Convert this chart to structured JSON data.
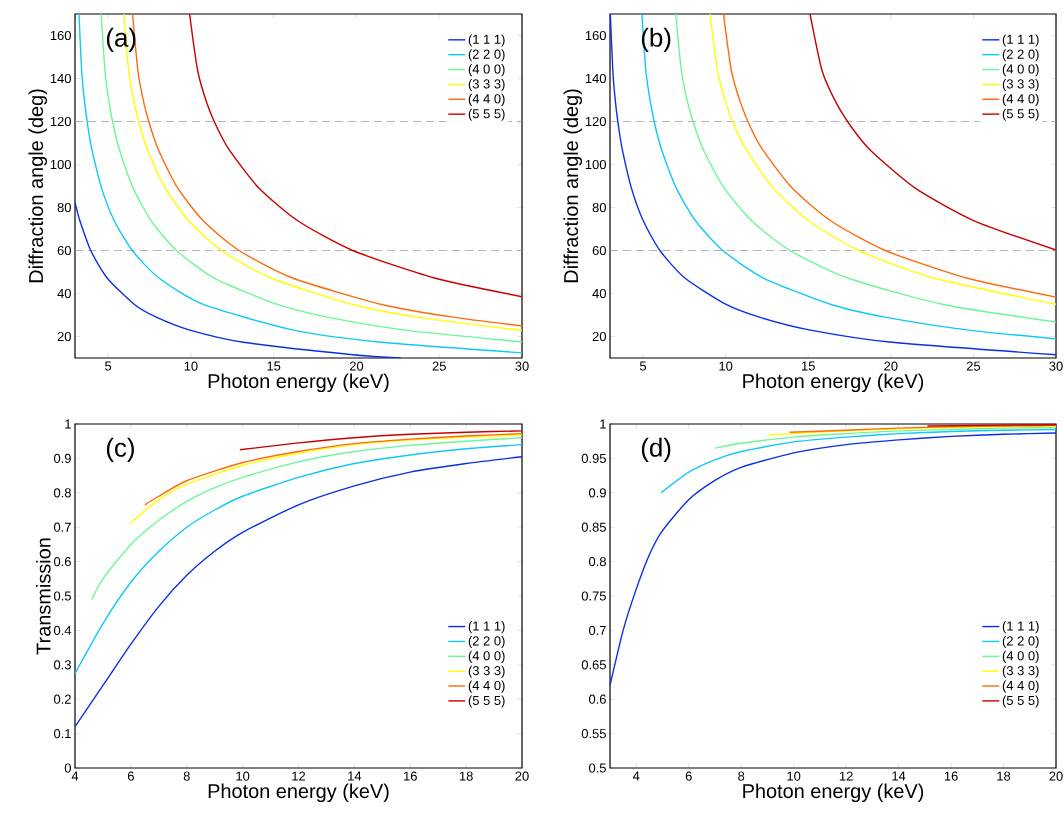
{
  "chart_data": [
    {
      "type": "line",
      "xlabel": "Photon energy (keV)",
      "ylabel": "Diffraction angle (deg)",
      "annotations": [
        "(a)"
      ],
      "xlim": [
        3,
        30
      ],
      "ylim": [
        10,
        170
      ],
      "xticks": [
        5,
        10,
        15,
        20,
        25,
        30
      ],
      "yticks": [
        20,
        40,
        60,
        80,
        100,
        120,
        140,
        160
      ],
      "legend": "top right",
      "marker": "none",
      "line_style": "solid",
      "ref_lines": [
        {
          "axis": "y",
          "value": 60,
          "color": "#a0a0a0",
          "line_style": "dashed"
        },
        {
          "axis": "y",
          "value": 120,
          "color": "#a0a0a0",
          "line_style": "dashed"
        }
      ],
      "series": [
        {
          "name": "(1 1 1)",
          "color": "#0a2fe6",
          "x": [
            3,
            3.04,
            3.3,
            3.95,
            4.94,
            6.59,
            7.91,
            9.89,
            13.18,
            19.77,
            22.67
          ],
          "values": [
            82.4,
            81.1,
            73.7,
            60,
            47.2,
            34.9,
            29.0,
            23.1,
            17.3,
            11.5,
            10
          ]
        },
        {
          "name": "(2 2 0)",
          "color": "#10c8f5",
          "x": [
            3.24,
            3.4,
            3.59,
            3.8,
            4.04,
            4.61,
            5.38,
            6.46,
            8.07,
            10.76,
            16.15,
            21.53,
            30
          ],
          "values": [
            170,
            143.6,
            128.3,
            116.4,
            106.3,
            88.9,
            73.7,
            60,
            47.2,
            34.9,
            23.1,
            17.3,
            12.4
          ]
        },
        {
          "name": "(4 0 0)",
          "color": "#6ef59a",
          "x": [
            4.58,
            4.81,
            5.07,
            5.37,
            5.71,
            6.52,
            7.61,
            9.13,
            11.41,
            15.22,
            18.26,
            22.83,
            30
          ],
          "values": [
            170,
            143.6,
            128.3,
            116.4,
            106.3,
            88.9,
            73.7,
            60,
            47.2,
            34.9,
            29.0,
            23.1,
            17.5
          ]
        },
        {
          "name": "(3 3 3)",
          "color": "#ffff00",
          "x": [
            5.95,
            6.24,
            6.59,
            6.98,
            7.41,
            8.47,
            9.89,
            11.86,
            14.83,
            19.77,
            23.72,
            30
          ],
          "values": [
            170,
            143.6,
            128.3,
            116.4,
            106.3,
            88.9,
            73.7,
            60,
            47.2,
            34.9,
            29.0,
            22.8
          ]
        },
        {
          "name": "(4 4 0)",
          "color": "#ff6a10",
          "x": [
            6.48,
            6.8,
            7.17,
            7.6,
            8.07,
            9.22,
            10.76,
            12.91,
            16.14,
            21.52,
            25.83,
            30
          ],
          "values": [
            170,
            143.6,
            128.3,
            116.4,
            106.3,
            88.9,
            73.7,
            60,
            47.2,
            34.9,
            29.0,
            24.9
          ]
        },
        {
          "name": "(5 5 5)",
          "color": "#c80000",
          "x": [
            9.92,
            10.41,
            10.98,
            11.63,
            12.36,
            14.12,
            16.48,
            19.77,
            24.71,
            30
          ],
          "values": [
            170,
            143.6,
            128.3,
            116.4,
            106.3,
            88.9,
            73.7,
            60,
            47.2,
            38.5
          ]
        }
      ]
    },
    {
      "type": "line",
      "xlabel": "Photon energy (keV)",
      "ylabel": "Diffraction angle (deg)",
      "annotations": [
        "(b)"
      ],
      "xlim": [
        3,
        30
      ],
      "ylim": [
        10,
        170
      ],
      "xticks": [
        5,
        10,
        15,
        20,
        25,
        30
      ],
      "yticks": [
        20,
        40,
        60,
        80,
        100,
        120,
        140,
        160
      ],
      "legend": "top right",
      "marker": "none",
      "line_style": "solid",
      "ref_lines": [
        {
          "axis": "y",
          "value": 60,
          "color": "#a0a0a0",
          "line_style": "dashed"
        },
        {
          "axis": "y",
          "value": 120,
          "color": "#a0a0a0",
          "line_style": "dashed"
        }
      ],
      "series": [
        {
          "name": "(1 1 1)",
          "color": "#0a2fe6",
          "x": [
            3.02,
            3.17,
            3.34,
            3.54,
            3.76,
            4.3,
            5.02,
            6.02,
            7.53,
            10.03,
            12.04,
            15.05,
            20.07,
            30
          ],
          "values": [
            170,
            143.6,
            128.3,
            116.4,
            106.3,
            88.9,
            73.7,
            60,
            47.2,
            34.9,
            29.0,
            23.1,
            17.3,
            11.5
          ]
        },
        {
          "name": "(2 2 0)",
          "color": "#10c8f5",
          "x": [
            4.93,
            5.17,
            5.46,
            5.78,
            6.15,
            7.02,
            8.19,
            9.83,
            12.29,
            16.39,
            19.66,
            24.58,
            30
          ],
          "values": [
            170,
            143.6,
            128.3,
            116.4,
            106.3,
            88.9,
            73.7,
            60,
            47.2,
            34.9,
            29.0,
            23.1,
            18.9
          ]
        },
        {
          "name": "(4 0 0)",
          "color": "#6ef59a",
          "x": [
            6.98,
            7.32,
            7.72,
            8.18,
            8.69,
            9.93,
            11.59,
            13.9,
            17.38,
            23.17,
            30
          ],
          "values": [
            170,
            143.6,
            128.3,
            116.4,
            106.3,
            88.9,
            73.7,
            60,
            47.2,
            34.9,
            26.8
          ]
        },
        {
          "name": "(3 3 3)",
          "color": "#ffff00",
          "x": [
            9.06,
            9.51,
            10.03,
            10.62,
            11.29,
            12.9,
            15.05,
            18.06,
            22.58,
            30
          ],
          "values": [
            170,
            143.6,
            128.3,
            116.4,
            106.3,
            88.9,
            73.7,
            60,
            47.2,
            35.0
          ]
        },
        {
          "name": "(4 4 0)",
          "color": "#ff6a10",
          "x": [
            9.87,
            10.35,
            10.92,
            11.56,
            12.29,
            14.04,
            16.38,
            19.66,
            24.58,
            30
          ],
          "values": [
            170,
            143.6,
            128.3,
            116.4,
            106.3,
            88.9,
            73.7,
            60,
            47.2,
            38.3
          ]
        },
        {
          "name": "(5 5 5)",
          "color": "#c80000",
          "x": [
            15.11,
            15.84,
            16.72,
            17.71,
            18.81,
            21.5,
            25.08,
            30
          ],
          "values": [
            170,
            143.6,
            128.3,
            116.4,
            106.3,
            88.9,
            73.7,
            60.2
          ]
        }
      ]
    },
    {
      "type": "line",
      "xlabel": "Photon energy (keV)",
      "ylabel": "Transmission",
      "annotations": [
        "(c)"
      ],
      "xlim": [
        4,
        20
      ],
      "ylim": [
        0,
        1
      ],
      "xticks": [
        4,
        6,
        8,
        10,
        12,
        14,
        16,
        18,
        20
      ],
      "yticks": [
        0,
        0.1,
        0.2,
        0.3,
        0.4,
        0.5,
        0.6,
        0.7,
        0.8,
        0.9,
        1
      ],
      "legend": "bottom right",
      "marker": "none",
      "line_style": "solid",
      "series": [
        {
          "name": "(1 1 1)",
          "color": "#0a2fe6",
          "x": [
            4,
            5,
            6,
            7,
            8,
            9,
            10,
            12,
            14,
            16,
            18,
            20
          ],
          "values": [
            0.12,
            0.24,
            0.36,
            0.47,
            0.56,
            0.63,
            0.685,
            0.765,
            0.82,
            0.86,
            0.885,
            0.905
          ]
        },
        {
          "name": "(2 2 0)",
          "color": "#10c8f5",
          "x": [
            4,
            5,
            6,
            7,
            8,
            9,
            10,
            12,
            14,
            16,
            18,
            20
          ],
          "values": [
            0.275,
            0.42,
            0.54,
            0.63,
            0.7,
            0.75,
            0.79,
            0.845,
            0.885,
            0.91,
            0.928,
            0.94
          ]
        },
        {
          "name": "(4 0 0)",
          "color": "#6ef59a",
          "x": [
            4.6,
            5,
            6,
            7,
            8,
            9,
            10,
            12,
            14,
            16,
            18,
            20
          ],
          "values": [
            0.49,
            0.55,
            0.65,
            0.72,
            0.775,
            0.815,
            0.845,
            0.89,
            0.92,
            0.938,
            0.95,
            0.96
          ]
        },
        {
          "name": "(3 3 3)",
          "color": "#ffff00",
          "x": [
            5.95,
            7,
            8,
            10,
            12,
            14,
            16,
            18,
            20
          ],
          "values": [
            0.71,
            0.78,
            0.825,
            0.88,
            0.915,
            0.94,
            0.953,
            0.962,
            0.968
          ]
        },
        {
          "name": "(4 4 0)",
          "color": "#ff6a10",
          "x": [
            6.5,
            7,
            8,
            10,
            12,
            14,
            16,
            18,
            20
          ],
          "values": [
            0.765,
            0.79,
            0.835,
            0.888,
            0.92,
            0.943,
            0.956,
            0.965,
            0.972
          ]
        },
        {
          "name": "(5 5 5)",
          "color": "#c80000",
          "x": [
            9.9,
            12,
            14,
            16,
            18,
            20
          ],
          "values": [
            0.925,
            0.945,
            0.96,
            0.97,
            0.976,
            0.98
          ]
        }
      ]
    },
    {
      "type": "line",
      "xlabel": "Photon energy (keV)",
      "annotations": [
        "(d)"
      ],
      "xlim": [
        3,
        20
      ],
      "ylim": [
        0.5,
        1
      ],
      "xticks": [
        4,
        6,
        8,
        10,
        12,
        14,
        16,
        18,
        20
      ],
      "yticks": [
        0.5,
        0.55,
        0.6,
        0.65,
        0.7,
        0.75,
        0.8,
        0.85,
        0.9,
        0.95,
        1
      ],
      "legend": "bottom right",
      "marker": "none",
      "line_style": "solid",
      "series": [
        {
          "name": "(1 1 1)",
          "color": "#0a2fe6",
          "x": [
            3,
            3.5,
            4,
            4.5,
            5,
            6,
            7,
            8,
            10,
            12,
            14,
            16,
            18,
            20
          ],
          "values": [
            0.62,
            0.7,
            0.76,
            0.81,
            0.845,
            0.89,
            0.918,
            0.937,
            0.958,
            0.97,
            0.977,
            0.982,
            0.985,
            0.987
          ]
        },
        {
          "name": "(2 2 0)",
          "color": "#10c8f5",
          "x": [
            4.95,
            6,
            7,
            8,
            10,
            12,
            14,
            16,
            18,
            20
          ],
          "values": [
            0.9,
            0.93,
            0.948,
            0.96,
            0.974,
            0.981,
            0.986,
            0.989,
            0.991,
            0.992
          ]
        },
        {
          "name": "(4 0 0)",
          "color": "#6ef59a",
          "x": [
            7,
            8,
            10,
            12,
            14,
            16,
            18,
            20
          ],
          "values": [
            0.965,
            0.972,
            0.981,
            0.986,
            0.99,
            0.992,
            0.994,
            0.995
          ]
        },
        {
          "name": "(3 3 3)",
          "color": "#ffff00",
          "x": [
            9.05,
            10,
            12,
            14,
            16,
            18,
            20
          ],
          "values": [
            0.984,
            0.986,
            0.99,
            0.993,
            0.995,
            0.996,
            0.997
          ]
        },
        {
          "name": "(4 4 0)",
          "color": "#ff6a10",
          "x": [
            9.85,
            12,
            14,
            16,
            18,
            20
          ],
          "values": [
            0.988,
            0.991,
            0.994,
            0.996,
            0.997,
            0.998
          ]
        },
        {
          "name": "(5 5 5)",
          "color": "#c80000",
          "x": [
            15.1,
            17,
            20
          ],
          "values": [
            0.997,
            0.998,
            0.999
          ]
        }
      ]
    }
  ]
}
